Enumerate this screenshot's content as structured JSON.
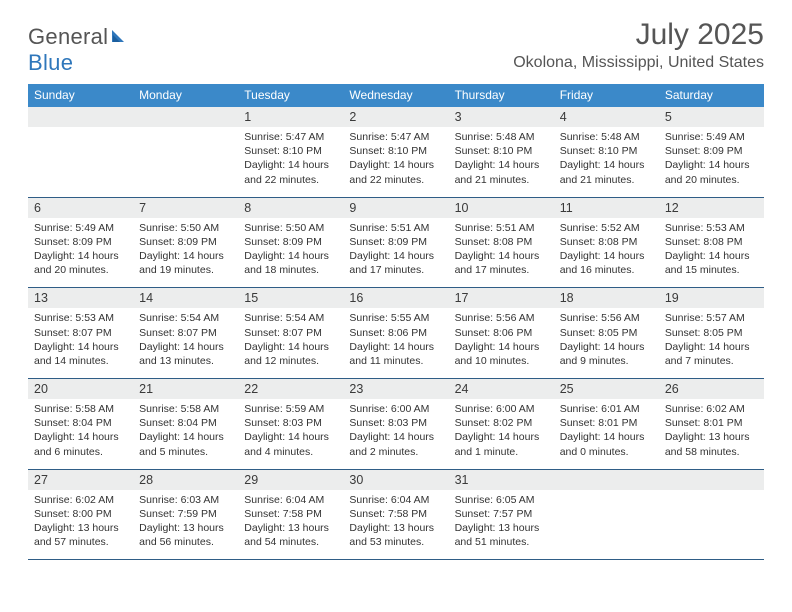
{
  "brand": {
    "part1": "General",
    "part2": "Blue"
  },
  "title": "July 2025",
  "location": "Okolona, Mississippi, United States",
  "styling": {
    "header_bg": "#3b89c9",
    "header_text_color": "#ffffff",
    "daynum_bg": "#eceded",
    "border_color": "#2f5d86",
    "page_bg": "#ffffff",
    "body_text_color": "#333333",
    "title_color": "#555555",
    "month_title_fontsize": 30,
    "location_fontsize": 16,
    "weekday_fontsize": 12,
    "daynum_fontsize": 12.5,
    "cell_fontsize": 10.5
  },
  "weekdays": [
    "Sunday",
    "Monday",
    "Tuesday",
    "Wednesday",
    "Thursday",
    "Friday",
    "Saturday"
  ],
  "weeks": [
    [
      {
        "n": "",
        "l1": "",
        "l2": "",
        "l3": "",
        "l4": ""
      },
      {
        "n": "",
        "l1": "",
        "l2": "",
        "l3": "",
        "l4": ""
      },
      {
        "n": "1",
        "l1": "Sunrise: 5:47 AM",
        "l2": "Sunset: 8:10 PM",
        "l3": "Daylight: 14 hours",
        "l4": "and 22 minutes."
      },
      {
        "n": "2",
        "l1": "Sunrise: 5:47 AM",
        "l2": "Sunset: 8:10 PM",
        "l3": "Daylight: 14 hours",
        "l4": "and 22 minutes."
      },
      {
        "n": "3",
        "l1": "Sunrise: 5:48 AM",
        "l2": "Sunset: 8:10 PM",
        "l3": "Daylight: 14 hours",
        "l4": "and 21 minutes."
      },
      {
        "n": "4",
        "l1": "Sunrise: 5:48 AM",
        "l2": "Sunset: 8:10 PM",
        "l3": "Daylight: 14 hours",
        "l4": "and 21 minutes."
      },
      {
        "n": "5",
        "l1": "Sunrise: 5:49 AM",
        "l2": "Sunset: 8:09 PM",
        "l3": "Daylight: 14 hours",
        "l4": "and 20 minutes."
      }
    ],
    [
      {
        "n": "6",
        "l1": "Sunrise: 5:49 AM",
        "l2": "Sunset: 8:09 PM",
        "l3": "Daylight: 14 hours",
        "l4": "and 20 minutes."
      },
      {
        "n": "7",
        "l1": "Sunrise: 5:50 AM",
        "l2": "Sunset: 8:09 PM",
        "l3": "Daylight: 14 hours",
        "l4": "and 19 minutes."
      },
      {
        "n": "8",
        "l1": "Sunrise: 5:50 AM",
        "l2": "Sunset: 8:09 PM",
        "l3": "Daylight: 14 hours",
        "l4": "and 18 minutes."
      },
      {
        "n": "9",
        "l1": "Sunrise: 5:51 AM",
        "l2": "Sunset: 8:09 PM",
        "l3": "Daylight: 14 hours",
        "l4": "and 17 minutes."
      },
      {
        "n": "10",
        "l1": "Sunrise: 5:51 AM",
        "l2": "Sunset: 8:08 PM",
        "l3": "Daylight: 14 hours",
        "l4": "and 17 minutes."
      },
      {
        "n": "11",
        "l1": "Sunrise: 5:52 AM",
        "l2": "Sunset: 8:08 PM",
        "l3": "Daylight: 14 hours",
        "l4": "and 16 minutes."
      },
      {
        "n": "12",
        "l1": "Sunrise: 5:53 AM",
        "l2": "Sunset: 8:08 PM",
        "l3": "Daylight: 14 hours",
        "l4": "and 15 minutes."
      }
    ],
    [
      {
        "n": "13",
        "l1": "Sunrise: 5:53 AM",
        "l2": "Sunset: 8:07 PM",
        "l3": "Daylight: 14 hours",
        "l4": "and 14 minutes."
      },
      {
        "n": "14",
        "l1": "Sunrise: 5:54 AM",
        "l2": "Sunset: 8:07 PM",
        "l3": "Daylight: 14 hours",
        "l4": "and 13 minutes."
      },
      {
        "n": "15",
        "l1": "Sunrise: 5:54 AM",
        "l2": "Sunset: 8:07 PM",
        "l3": "Daylight: 14 hours",
        "l4": "and 12 minutes."
      },
      {
        "n": "16",
        "l1": "Sunrise: 5:55 AM",
        "l2": "Sunset: 8:06 PM",
        "l3": "Daylight: 14 hours",
        "l4": "and 11 minutes."
      },
      {
        "n": "17",
        "l1": "Sunrise: 5:56 AM",
        "l2": "Sunset: 8:06 PM",
        "l3": "Daylight: 14 hours",
        "l4": "and 10 minutes."
      },
      {
        "n": "18",
        "l1": "Sunrise: 5:56 AM",
        "l2": "Sunset: 8:05 PM",
        "l3": "Daylight: 14 hours",
        "l4": "and 9 minutes."
      },
      {
        "n": "19",
        "l1": "Sunrise: 5:57 AM",
        "l2": "Sunset: 8:05 PM",
        "l3": "Daylight: 14 hours",
        "l4": "and 7 minutes."
      }
    ],
    [
      {
        "n": "20",
        "l1": "Sunrise: 5:58 AM",
        "l2": "Sunset: 8:04 PM",
        "l3": "Daylight: 14 hours",
        "l4": "and 6 minutes."
      },
      {
        "n": "21",
        "l1": "Sunrise: 5:58 AM",
        "l2": "Sunset: 8:04 PM",
        "l3": "Daylight: 14 hours",
        "l4": "and 5 minutes."
      },
      {
        "n": "22",
        "l1": "Sunrise: 5:59 AM",
        "l2": "Sunset: 8:03 PM",
        "l3": "Daylight: 14 hours",
        "l4": "and 4 minutes."
      },
      {
        "n": "23",
        "l1": "Sunrise: 6:00 AM",
        "l2": "Sunset: 8:03 PM",
        "l3": "Daylight: 14 hours",
        "l4": "and 2 minutes."
      },
      {
        "n": "24",
        "l1": "Sunrise: 6:00 AM",
        "l2": "Sunset: 8:02 PM",
        "l3": "Daylight: 14 hours",
        "l4": "and 1 minute."
      },
      {
        "n": "25",
        "l1": "Sunrise: 6:01 AM",
        "l2": "Sunset: 8:01 PM",
        "l3": "Daylight: 14 hours",
        "l4": "and 0 minutes."
      },
      {
        "n": "26",
        "l1": "Sunrise: 6:02 AM",
        "l2": "Sunset: 8:01 PM",
        "l3": "Daylight: 13 hours",
        "l4": "and 58 minutes."
      }
    ],
    [
      {
        "n": "27",
        "l1": "Sunrise: 6:02 AM",
        "l2": "Sunset: 8:00 PM",
        "l3": "Daylight: 13 hours",
        "l4": "and 57 minutes."
      },
      {
        "n": "28",
        "l1": "Sunrise: 6:03 AM",
        "l2": "Sunset: 7:59 PM",
        "l3": "Daylight: 13 hours",
        "l4": "and 56 minutes."
      },
      {
        "n": "29",
        "l1": "Sunrise: 6:04 AM",
        "l2": "Sunset: 7:58 PM",
        "l3": "Daylight: 13 hours",
        "l4": "and 54 minutes."
      },
      {
        "n": "30",
        "l1": "Sunrise: 6:04 AM",
        "l2": "Sunset: 7:58 PM",
        "l3": "Daylight: 13 hours",
        "l4": "and 53 minutes."
      },
      {
        "n": "31",
        "l1": "Sunrise: 6:05 AM",
        "l2": "Sunset: 7:57 PM",
        "l3": "Daylight: 13 hours",
        "l4": "and 51 minutes."
      },
      {
        "n": "",
        "l1": "",
        "l2": "",
        "l3": "",
        "l4": ""
      },
      {
        "n": "",
        "l1": "",
        "l2": "",
        "l3": "",
        "l4": ""
      }
    ]
  ]
}
